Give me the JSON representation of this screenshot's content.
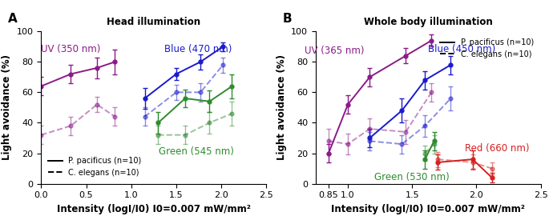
{
  "chart_data": [
    {
      "type": "line",
      "panel": "A",
      "title": "Head illumination",
      "x_label": "Intensity (logI/I0) I0=0.007 mW/mm²",
      "y_label": "Light avoidance (%)",
      "xlim": [
        0,
        2.5
      ],
      "xticks": [
        {
          "value": 0,
          "label": "0.0"
        },
        0.5,
        {
          "value": 1,
          "label": "1.0"
        },
        1.5,
        {
          "value": 2,
          "label": "2.0"
        },
        2.5
      ],
      "ylim": [
        0,
        100
      ],
      "yticks": [
        0,
        20,
        40,
        60,
        80,
        100
      ],
      "legend": "lower left",
      "legend_entries": [
        {
          "name": "P. pacificus (n=10)",
          "line_style": "solid"
        },
        {
          "name": "C. elegans (n=10)",
          "line_style": "dashed"
        }
      ],
      "series": [
        {
          "name": "UV (350 nm)",
          "group": "P. pacificus (n=10)",
          "color": "#8b1a89",
          "line_style": "solid",
          "marker": "o",
          "x": [
            0,
            0.33,
            0.62,
            0.82
          ],
          "values": [
            64,
            72,
            76,
            80
          ],
          "errors": [
            6,
            6,
            7,
            8
          ]
        },
        {
          "name": "UV (350 nm)",
          "group": "C. elegans (n=10)",
          "color": "#8b1a89",
          "line_style": "dashed",
          "marker": "o",
          "x": [
            0,
            0.33,
            0.62,
            0.82
          ],
          "values": [
            32,
            38,
            52,
            44
          ],
          "errors": [
            6,
            6,
            5,
            6
          ]
        },
        {
          "name": "Blue (470 nm)",
          "group": "P. pacificus (n=10)",
          "color": "#1a1acd",
          "line_style": "solid",
          "marker": "o",
          "x": [
            1.15,
            1.5,
            1.77,
            2.02
          ],
          "values": [
            56,
            72,
            80,
            90
          ],
          "errors": [
            7,
            4,
            5,
            3
          ]
        },
        {
          "name": "Blue (470 nm)",
          "group": "C. elegans (n=10)",
          "color": "#1a1acd",
          "line_style": "dashed",
          "marker": "o",
          "x": [
            1.15,
            1.5,
            1.77,
            2.02
          ],
          "values": [
            44,
            60,
            60,
            78
          ],
          "errors": [
            6,
            5,
            6,
            5
          ]
        },
        {
          "name": "Green (545 nm)",
          "group": "P. pacificus (n=10)",
          "color": "#2e8b2e",
          "line_style": "solid",
          "marker": "o",
          "x": [
            1.3,
            1.6,
            1.87,
            2.12
          ],
          "values": [
            40,
            56,
            54,
            64
          ],
          "errors": [
            7,
            6,
            7,
            8
          ]
        },
        {
          "name": "Green (545 nm)",
          "group": "C. elegans (n=10)",
          "color": "#2e8b2e",
          "line_style": "dashed",
          "marker": "o",
          "x": [
            1.3,
            1.6,
            1.87,
            2.12
          ],
          "values": [
            32,
            32,
            40,
            46
          ],
          "errors": [
            6,
            6,
            7,
            8
          ]
        }
      ]
    },
    {
      "type": "line",
      "panel": "B",
      "title": "Whole body illumination",
      "x_label": "Intensity (logI/I0) I0=0.007 mW/mm²",
      "y_label": "Light avoidance (%)",
      "xlim": [
        0.75,
        2.5
      ],
      "xticks": [
        0.85,
        {
          "value": 1,
          "label": "1.0"
        },
        1.5,
        {
          "value": 2,
          "label": "2.0"
        },
        2.5
      ],
      "ylim": [
        0,
        100
      ],
      "yticks": [
        0,
        20,
        40,
        60,
        80,
        100
      ],
      "legend": "upper right",
      "legend_entries": [
        {
          "name": "P. pacificus (n=10)",
          "line_style": "solid"
        },
        {
          "name": "C. elegans (n=10)",
          "line_style": "dashed"
        }
      ],
      "series": [
        {
          "name": "UV (365 nm)",
          "group": "P. pacificus (n=10)",
          "color": "#8b1a89",
          "line_style": "solid",
          "marker": "o",
          "x": [
            0.85,
            1.0,
            1.17,
            1.45,
            1.65
          ],
          "values": [
            20,
            52,
            70,
            84,
            94
          ],
          "errors": [
            6,
            6,
            6,
            5,
            4
          ]
        },
        {
          "name": "UV (365 nm)",
          "group": "C. elegans (n=10)",
          "color": "#8b1a89",
          "line_style": "dashed",
          "marker": "o",
          "x": [
            0.85,
            1.0,
            1.17,
            1.45,
            1.65
          ],
          "values": [
            28,
            26,
            36,
            34,
            60
          ],
          "errors": [
            8,
            7,
            7,
            8,
            6
          ]
        },
        {
          "name": "Blue (450 nm)",
          "group": "P. pacificus (n=10)",
          "color": "#1a1acd",
          "line_style": "solid",
          "marker": "o",
          "x": [
            1.17,
            1.42,
            1.6,
            1.8
          ],
          "values": [
            30,
            48,
            68,
            78
          ],
          "errors": [
            6,
            8,
            6,
            6
          ]
        },
        {
          "name": "Blue (450 nm)",
          "group": "C. elegans (n=10)",
          "color": "#1a1acd",
          "line_style": "dashed",
          "marker": "o",
          "x": [
            1.17,
            1.42,
            1.6,
            1.8
          ],
          "values": [
            28,
            26,
            38,
            56
          ],
          "errors": [
            6,
            6,
            7,
            8
          ]
        },
        {
          "name": "Green (530 nm)",
          "group": "P. pacificus (n=10)",
          "color": "#2e8b2e",
          "line_style": "solid",
          "marker": "o",
          "x": [
            1.6,
            1.67
          ],
          "values": [
            16,
            28
          ],
          "errors": [
            6,
            6
          ]
        },
        {
          "name": "Green (530 nm)",
          "group": "C. elegans (n=10)",
          "color": "#2e8b2e",
          "line_style": "dashed",
          "marker": "o",
          "x": [
            1.6,
            1.67
          ],
          "values": [
            20,
            26
          ],
          "errors": [
            5,
            6
          ]
        },
        {
          "name": "Red (660 nm)",
          "group": "P. pacificus (n=10)",
          "color": "#d62020",
          "line_style": "solid",
          "marker": "o",
          "x": [
            1.7,
            1.97,
            2.12
          ],
          "values": [
            14,
            16,
            4
          ],
          "errors": [
            5,
            6,
            3
          ]
        },
        {
          "name": "Red (660 nm)",
          "group": "C. elegans (n=10)",
          "color": "#d62020",
          "line_style": "dashed",
          "marker": "o",
          "x": [
            1.7,
            1.97,
            2.12
          ],
          "values": [
            16,
            14,
            10
          ],
          "errors": [
            5,
            5,
            4
          ]
        }
      ]
    }
  ]
}
